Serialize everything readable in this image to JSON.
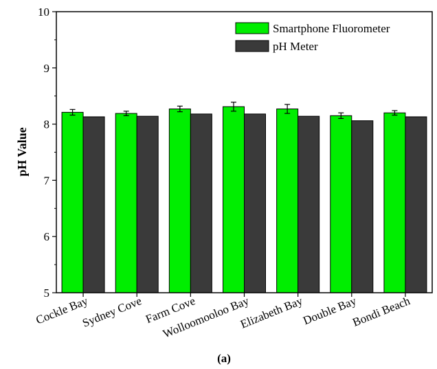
{
  "chart_data": {
    "type": "bar",
    "title": "",
    "xlabel": "",
    "ylabel": "pH Value",
    "ylim": [
      5,
      10
    ],
    "yticks": [
      5,
      6,
      7,
      8,
      9,
      10
    ],
    "categories": [
      "Cockle Bay",
      "Sydney Cove",
      "Farm Cove",
      "Wolloomooloo Bay",
      "Elizabeth Bay",
      "Double Bay",
      "Bondi Beach"
    ],
    "series": [
      {
        "name": "Smartphone Fluorometer",
        "color": "#00ee00",
        "values": [
          8.21,
          8.19,
          8.27,
          8.31,
          8.27,
          8.15,
          8.2
        ],
        "errors": [
          0.05,
          0.04,
          0.05,
          0.08,
          0.08,
          0.05,
          0.04
        ]
      },
      {
        "name": "pH Meter",
        "color": "#3a3a3a",
        "values": [
          8.13,
          8.14,
          8.18,
          8.18,
          8.14,
          8.06,
          8.13
        ]
      }
    ],
    "legend_position": "top-right",
    "grid": false
  },
  "caption": "(a)"
}
